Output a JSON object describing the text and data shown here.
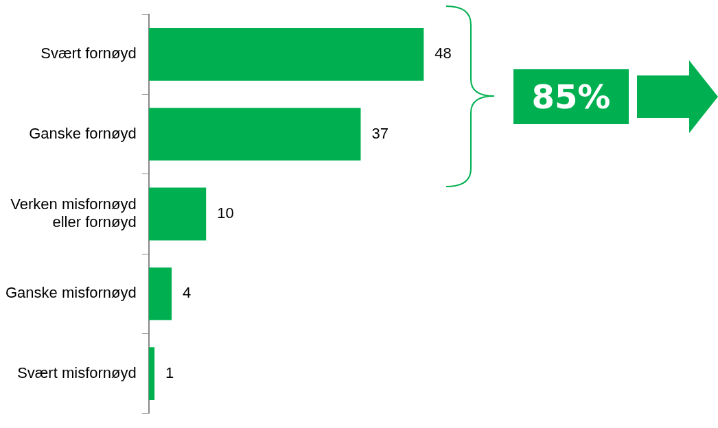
{
  "chart_data": {
    "type": "bar",
    "orientation": "horizontal",
    "categories": [
      "Svært fornøyd",
      "Ganske fornøyd",
      "Verken misfornøyd eller fornøyd",
      "Ganske misfornøyd",
      "Svært misfornøyd"
    ],
    "values": [
      48,
      37,
      10,
      4,
      1
    ],
    "color": "#00b050",
    "data_labels": true,
    "legend": false,
    "tick_labels": "y",
    "annotations": [
      "85%"
    ]
  }
}
